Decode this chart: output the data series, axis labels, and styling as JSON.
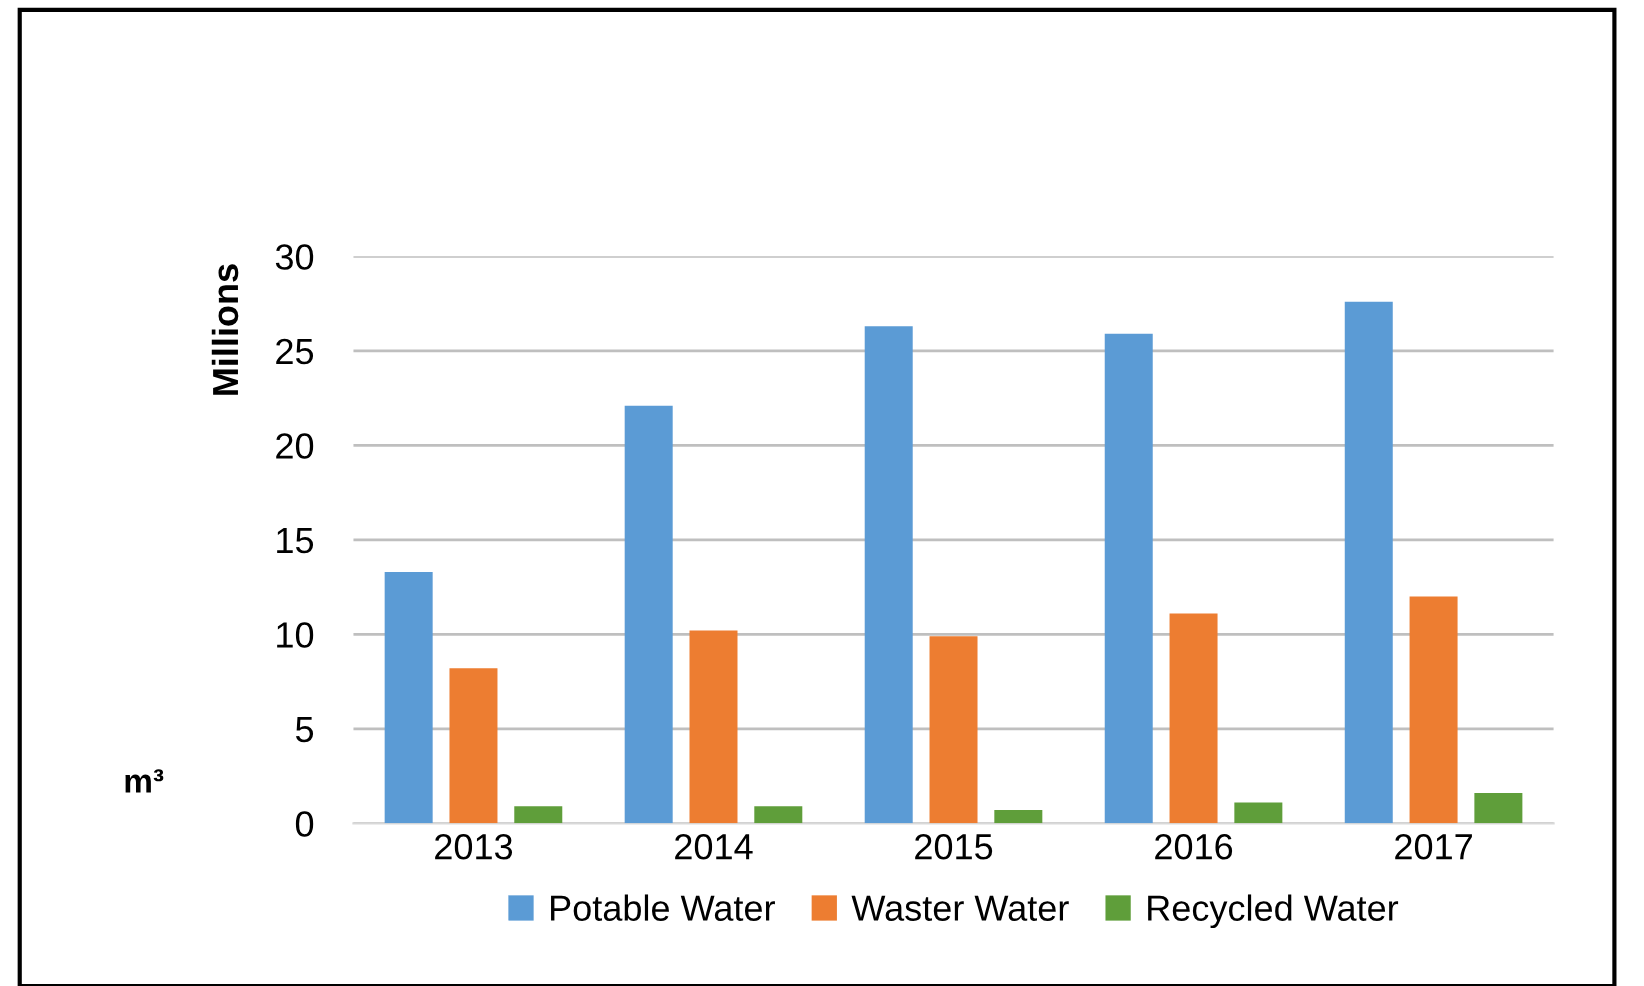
{
  "chart_data": {
    "type": "bar",
    "ylabel": "Millions",
    "annotations": [
      "m³"
    ],
    "categories": [
      "2013",
      "2014",
      "2015",
      "2016",
      "2017"
    ],
    "series": [
      {
        "name": "Potable Water",
        "color": "#5b9bd5",
        "values": [
          13.3,
          22.1,
          26.3,
          25.9,
          27.6
        ]
      },
      {
        "name": "Waster Water",
        "color": "#ed7d31",
        "values": [
          8.2,
          10.2,
          9.9,
          11.1,
          12.0
        ]
      },
      {
        "name": "Recycled Water",
        "color": "#5f9e3a",
        "values": [
          0.9,
          0.9,
          0.7,
          1.1,
          1.6
        ]
      }
    ],
    "ylim": [
      0,
      30
    ],
    "yticks": [
      0,
      5,
      10,
      15,
      20,
      25,
      30
    ],
    "grid": "y",
    "legend": "bottom"
  }
}
